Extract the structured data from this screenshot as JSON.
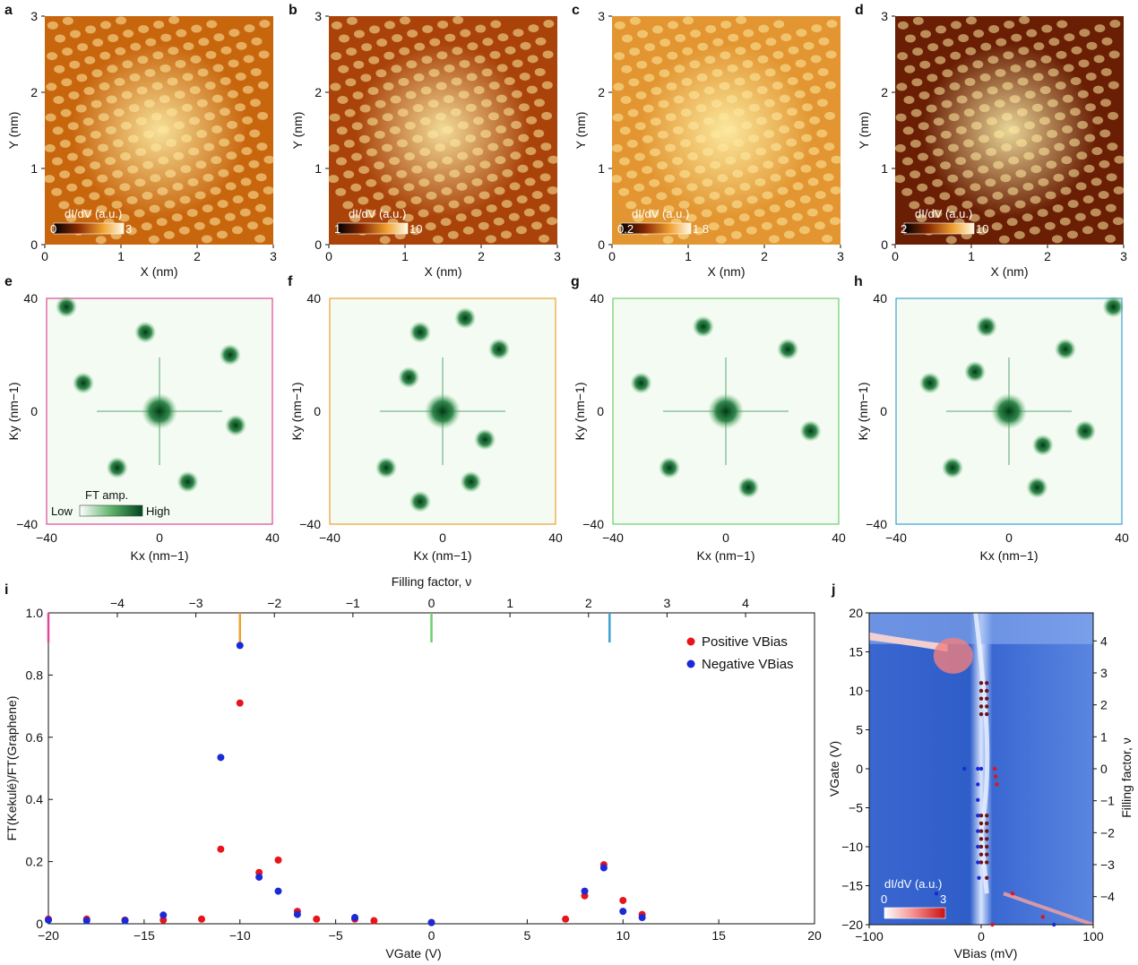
{
  "figure": {
    "panel_letters": [
      "a",
      "b",
      "c",
      "d",
      "e",
      "f",
      "g",
      "h",
      "i",
      "j"
    ]
  },
  "stm_panels": [
    {
      "letter": "a",
      "x_ticks": [
        "0",
        "1",
        "2",
        "3"
      ],
      "y_ticks": [
        "0",
        "1",
        "2",
        "3"
      ],
      "xlabel": "X (nm)",
      "ylabel": "Y (nm)",
      "cbar_label": "dI/dV (a.u.)",
      "cbar_min": "0",
      "cbar_max": "3",
      "tone": "#c8660e"
    },
    {
      "letter": "b",
      "x_ticks": [
        "0",
        "1",
        "2",
        "3"
      ],
      "y_ticks": [
        "0",
        "1",
        "2",
        "3"
      ],
      "xlabel": "X (nm)",
      "ylabel": "Y (nm)",
      "cbar_label": "dI/dV (a.u.)",
      "cbar_min": "1",
      "cbar_max": "10",
      "tone": "#a9430a"
    },
    {
      "letter": "c",
      "x_ticks": [
        "0",
        "1",
        "2",
        "3"
      ],
      "y_ticks": [
        "0",
        "1",
        "2",
        "3"
      ],
      "xlabel": "X (nm)",
      "ylabel": "Y (nm)",
      "cbar_label": "dI/dV (a.u.)",
      "cbar_min": "0.2",
      "cbar_max": "1.8",
      "tone": "#e29530"
    },
    {
      "letter": "d",
      "x_ticks": [
        "0",
        "1",
        "2",
        "3"
      ],
      "y_ticks": [
        "0",
        "1",
        "2",
        "3"
      ],
      "xlabel": "X (nm)",
      "ylabel": "Y (nm)",
      "cbar_label": "dI/dV (a.u.)",
      "cbar_min": "2",
      "cbar_max": "10",
      "tone": "#6a1e04"
    }
  ],
  "fft_panels": [
    {
      "letter": "e",
      "border": "#e0489a",
      "x_ticks": [
        "−40",
        "0",
        "40"
      ],
      "y_ticks": [
        "40",
        "0",
        "−40"
      ],
      "xlabel": "Kx (nm−1)",
      "ylabel": "Ky (nm−1)"
    },
    {
      "letter": "f",
      "border": "#f0a030",
      "x_ticks": [
        "−40",
        "0",
        "40"
      ],
      "y_ticks": [
        "40",
        "0",
        "−40"
      ],
      "xlabel": "Kx (nm−1)",
      "ylabel": "Ky (nm−1)"
    },
    {
      "letter": "g",
      "border": "#6ccf6c",
      "x_ticks": [
        "−40",
        "0",
        "40"
      ],
      "y_ticks": [
        "40",
        "0",
        "−40"
      ],
      "xlabel": "Kx (nm−1)",
      "ylabel": "Ky (nm−1)"
    },
    {
      "letter": "h",
      "border": "#3fa0d0",
      "x_ticks": [
        "−40",
        "0",
        "40"
      ],
      "y_ticks": [
        "40",
        "0",
        "−40"
      ],
      "xlabel": "Kx (nm−1)",
      "ylabel": "Ky (nm−1)"
    }
  ],
  "fft_colorbar": {
    "label": "FT amp.",
    "low": "Low",
    "high": "High"
  },
  "chart_data": [
    {
      "panel": "i",
      "type": "scatter",
      "xlabel": "VGate (V)",
      "ylabel": "FT(Kekulé)/FT(Graphene)",
      "top_xlabel": "Filling factor, ν",
      "xlim": [
        -20,
        20
      ],
      "ylim": [
        0,
        1.0
      ],
      "x_ticks": [
        -20,
        -15,
        -10,
        -5,
        0,
        5,
        10,
        15,
        20
      ],
      "y_ticks": [
        0,
        0.2,
        0.4,
        0.6,
        0.8,
        1.0
      ],
      "y_tick_labels": [
        "0",
        "0.2",
        "0.4",
        "0.6",
        "0.8",
        "1.0"
      ],
      "x_tick_labels": [
        "−20",
        "−15",
        "−10",
        "−5",
        "0",
        "5",
        "10",
        "15",
        "20"
      ],
      "top_ticks": [
        -4,
        -3,
        -2,
        -1,
        0,
        1,
        2,
        3,
        4
      ],
      "top_tick_labels": [
        "−4",
        "−3",
        "−2",
        "−1",
        "0",
        "1",
        "2",
        "3",
        "4"
      ],
      "markers": [
        {
          "x": -20,
          "color": "#e0489a"
        },
        {
          "x": -10,
          "color": "#f0a030"
        },
        {
          "x": 0,
          "color": "#6ccf6c"
        },
        {
          "x": 9.3,
          "color": "#3fa0d0"
        }
      ],
      "legend_position": "top-right",
      "series": [
        {
          "name": "Positive VBias",
          "color": "#e8141c",
          "x": [
            -20,
            -18,
            -16,
            -14,
            -12,
            -11,
            -10,
            -9,
            -8,
            -7,
            -6,
            -4,
            -3,
            0,
            7,
            8,
            9,
            10,
            11
          ],
          "y": [
            0.015,
            0.015,
            0.012,
            0.012,
            0.015,
            0.24,
            0.71,
            0.165,
            0.205,
            0.04,
            0.015,
            0.015,
            0.01,
            0.004,
            0.015,
            0.09,
            0.19,
            0.075,
            0.03
          ]
        },
        {
          "name": "Negative VBias",
          "color": "#1a2ad6",
          "x": [
            -20,
            -18,
            -16,
            -14,
            -11,
            -10,
            -9,
            -8,
            -7,
            -4,
            0,
            8,
            9,
            10,
            11
          ],
          "y": [
            0.012,
            0.01,
            0.01,
            0.028,
            0.535,
            0.895,
            0.15,
            0.105,
            0.03,
            0.02,
            0.004,
            0.105,
            0.18,
            0.04,
            0.02
          ]
        }
      ]
    },
    {
      "panel": "j",
      "type": "heatmap",
      "xlabel": "VBias (mV)",
      "ylabel": "VGate (V)",
      "right_ylabel": "Filling factor, ν",
      "xlim": [
        -100,
        100
      ],
      "ylim": [
        -20,
        20
      ],
      "x_ticks": [
        -100,
        0,
        100
      ],
      "x_tick_labels": [
        "−100",
        "0",
        "100"
      ],
      "y_ticks": [
        -20,
        -15,
        -10,
        -5,
        0,
        5,
        10,
        15,
        20
      ],
      "y_tick_labels": [
        "−20",
        "−15",
        "−10",
        "−5",
        "0",
        "5",
        "10",
        "15",
        "20"
      ],
      "right_ticks": [
        4,
        3,
        2,
        1,
        0,
        -1,
        -2,
        -3,
        -4
      ],
      "right_tick_labels": [
        "4",
        "3",
        "2",
        "1",
        "0",
        "−1",
        "−2",
        "−3",
        "−4"
      ],
      "colorbar": {
        "label": "dI/dV (a.u.)",
        "min": "0",
        "max": "3"
      },
      "points": {
        "dark_red": [
          [
            0,
            11
          ],
          [
            5,
            11
          ],
          [
            0,
            10
          ],
          [
            5,
            10
          ],
          [
            0,
            9
          ],
          [
            5,
            9
          ],
          [
            0,
            8
          ],
          [
            5,
            8
          ],
          [
            0,
            7
          ],
          [
            5,
            7
          ],
          [
            0,
            -6
          ],
          [
            5,
            -6
          ],
          [
            0,
            -7
          ],
          [
            5,
            -7
          ],
          [
            0,
            -8
          ],
          [
            5,
            -8
          ],
          [
            0,
            -9
          ],
          [
            5,
            -9
          ],
          [
            0,
            -10
          ],
          [
            5,
            -10
          ],
          [
            0,
            -11
          ],
          [
            5,
            -11
          ],
          [
            0,
            -12
          ],
          [
            5,
            -12
          ],
          [
            5,
            -14
          ]
        ],
        "red": [
          [
            12,
            0
          ],
          [
            13,
            -1
          ],
          [
            14,
            -2
          ],
          [
            28,
            -16
          ],
          [
            55,
            -19
          ],
          [
            10,
            -20
          ]
        ],
        "blue": [
          [
            -15,
            0
          ],
          [
            -3,
            0
          ],
          [
            0,
            0
          ],
          [
            -3,
            -2
          ],
          [
            -3,
            -4
          ],
          [
            -3,
            -6
          ],
          [
            -3,
            -8
          ],
          [
            -3,
            -10
          ],
          [
            -3,
            -12
          ],
          [
            -40,
            -16
          ],
          [
            -2,
            -14
          ],
          [
            65,
            -20
          ]
        ]
      }
    }
  ]
}
